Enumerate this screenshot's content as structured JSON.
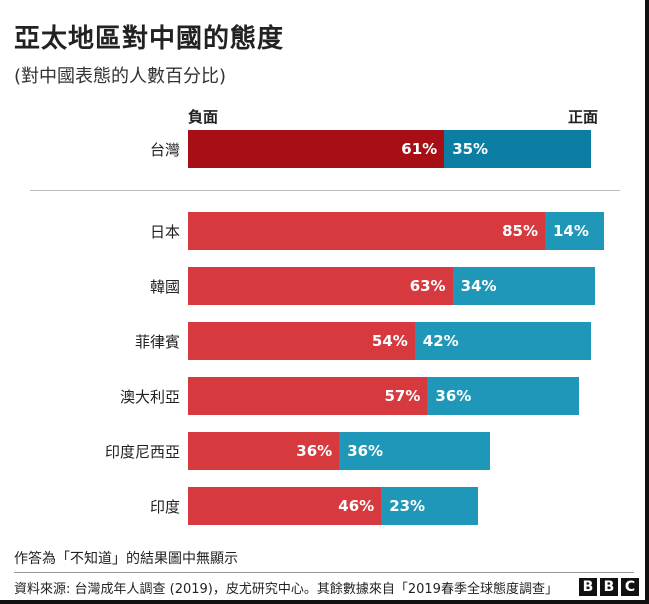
{
  "title": "亞太地區對中國的態度",
  "subtitle": "(對中國表態的人數百分比)",
  "axis": {
    "negative_label": "負面",
    "positive_label": "正面"
  },
  "colors": {
    "taiwan_negative": "#a50f15",
    "taiwan_positive": "#0d7ea3",
    "negative": "#d63a3f",
    "positive": "#1f97b8"
  },
  "chart_data": {
    "type": "bar",
    "stacked": true,
    "orientation": "horizontal",
    "categories": [
      "台灣",
      "日本",
      "韓國",
      "菲律賓",
      "澳大利亞",
      "印度尼西亞",
      "印度"
    ],
    "series": [
      {
        "name": "負面",
        "values": [
          61,
          85,
          63,
          54,
          57,
          36,
          46
        ],
        "labels": [
          "61%",
          "85%",
          "63%",
          "54%",
          "57%",
          "36%",
          "46%"
        ]
      },
      {
        "name": "正面",
        "values": [
          35,
          14,
          34,
          42,
          36,
          36,
          23
        ],
        "labels": [
          "35%",
          "14%",
          "34%",
          "42%",
          "36%",
          "36%",
          "23%"
        ]
      }
    ],
    "xlim": [
      0,
      100
    ],
    "highlighted_category": "台灣"
  },
  "footnote": "作答為「不知道」的結果圖中無顯示",
  "source": "資料來源: 台灣成年人調查 (2019)，皮尤研究中心。其餘數據來自「2019春季全球態度調查」",
  "logo": {
    "letters": [
      "B",
      "B",
      "C"
    ]
  }
}
